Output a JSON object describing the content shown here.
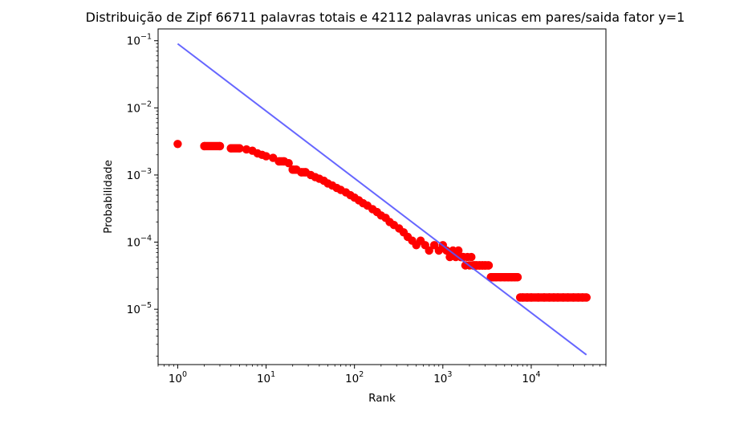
{
  "chart_data": {
    "type": "scatter",
    "title": "Distribuição de Zipf 66711 palavras totais e 42112 palavras unicas em pares/saida fator y=1",
    "xlabel": "Rank",
    "ylabel": "Probabilidade",
    "xscale": "log",
    "yscale": "log",
    "xlim": [
      0.6,
      70000
    ],
    "ylim": [
      1.5e-06,
      0.15
    ],
    "xticks": [
      {
        "value": 1,
        "base": "10",
        "exp": "0"
      },
      {
        "value": 10,
        "base": "10",
        "exp": "1"
      },
      {
        "value": 100,
        "base": "10",
        "exp": "2"
      },
      {
        "value": 1000,
        "base": "10",
        "exp": "3"
      },
      {
        "value": 10000,
        "base": "10",
        "exp": "4"
      }
    ],
    "yticks": [
      {
        "value": 0.1,
        "base": "10",
        "exp": "−1"
      },
      {
        "value": 0.01,
        "base": "10",
        "exp": "−2"
      },
      {
        "value": 0.001,
        "base": "10",
        "exp": "−3"
      },
      {
        "value": 0.0001,
        "base": "10",
        "exp": "−4"
      },
      {
        "value": 1e-05,
        "base": "10",
        "exp": "−5"
      }
    ],
    "grid": false,
    "legend": "none",
    "series": [
      {
        "kind": "scatter",
        "color": "#ff0000",
        "x": [
          1,
          2,
          3,
          4,
          5,
          6,
          7,
          8,
          9,
          10,
          12,
          14,
          16,
          18,
          20,
          22,
          25,
          28,
          32,
          36,
          40,
          45,
          50,
          56,
          63,
          70,
          80,
          90,
          100,
          112,
          125,
          140,
          160,
          180,
          200,
          225,
          250,
          280,
          320,
          360,
          400,
          450,
          500,
          560,
          630,
          700,
          800,
          900,
          1000,
          1100,
          1200,
          1300,
          1400,
          1500,
          1600,
          1700,
          1800,
          1900,
          2000,
          2100,
          2200,
          2300,
          2400,
          2600,
          2800,
          3000,
          3300,
          3500,
          3700,
          4000,
          4500,
          5000,
          5500,
          6000,
          6500,
          7000,
          7500,
          8000,
          9000,
          10000,
          12000,
          14000,
          16000,
          18000,
          20000,
          23000,
          26000,
          30000,
          34000,
          38000,
          42112
        ],
        "y": [
          0.0029,
          0.0027,
          0.0027,
          0.0025,
          0.0025,
          0.0024,
          0.0023,
          0.0021,
          0.002,
          0.0019,
          0.0018,
          0.0016,
          0.0016,
          0.0015,
          0.0012,
          0.0012,
          0.0011,
          0.0011,
          0.001,
          0.00093,
          0.00088,
          0.00082,
          0.00075,
          0.0007,
          0.00064,
          0.0006,
          0.00055,
          0.0005,
          0.00046,
          0.00042,
          0.00038,
          0.00035,
          0.00031,
          0.00028,
          0.00025,
          0.00023,
          0.0002,
          0.00018,
          0.00016,
          0.00014,
          0.00012,
          0.000105,
          9e-05,
          0.000105,
          9e-05,
          7.5e-05,
          9e-05,
          7.5e-05,
          9e-05,
          7.5e-05,
          6e-05,
          7.5e-05,
          6e-05,
          7.5e-05,
          6e-05,
          6e-05,
          4.5e-05,
          6e-05,
          4.5e-05,
          6e-05,
          4.5e-05,
          4.5e-05,
          4.5e-05,
          4.5e-05,
          4.5e-05,
          4.5e-05,
          4.5e-05,
          3e-05,
          3e-05,
          3e-05,
          3e-05,
          3e-05,
          3e-05,
          3e-05,
          3e-05,
          3e-05,
          1.5e-05,
          1.5e-05,
          1.5e-05,
          1.5e-05,
          1.5e-05,
          1.5e-05,
          1.5e-05,
          1.5e-05,
          1.5e-05,
          1.5e-05,
          1.5e-05,
          1.5e-05,
          1.5e-05,
          1.5e-05,
          1.5e-05
        ]
      },
      {
        "kind": "line",
        "color": "#5555ff",
        "x": [
          1,
          42112
        ],
        "y": [
          0.09,
          2.1e-06
        ]
      }
    ]
  }
}
